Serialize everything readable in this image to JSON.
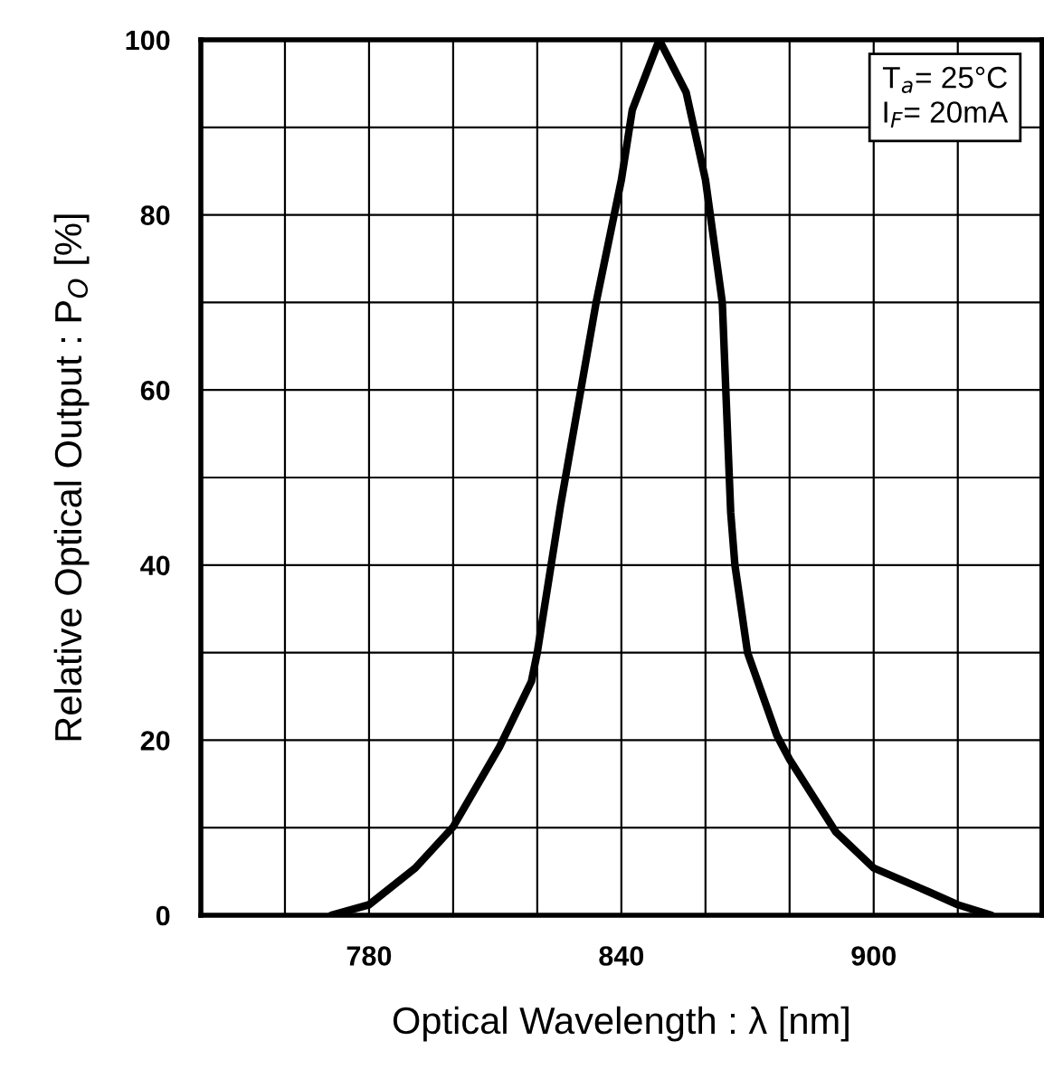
{
  "chart_data": {
    "type": "line",
    "xlabel": "Optical Wavelength : λ [nm]",
    "ylabel": "Relative Optical Output : P$_{O}$ [%]",
    "annotations": [
      "T$_{a}$= 25°C\nI$_{F}$= 20mA"
    ],
    "x": [
      771,
      780,
      791,
      800,
      811,
      818.6,
      820,
      825.5,
      834,
      840,
      842.6,
      849,
      855.4,
      860,
      864,
      866,
      867,
      870,
      877,
      880,
      891,
      900,
      913,
      920,
      928
    ],
    "series": [
      {
        "color": "#000000",
        "values": [
          0,
          1.2,
          5.4,
          10.1,
          19.2,
          26.7,
          30,
          46.7,
          70,
          84,
          92,
          100,
          94,
          84,
          70,
          46,
          40,
          30,
          20.5,
          17.8,
          9.5,
          5.4,
          2.7,
          1.2,
          0
        ]
      }
    ],
    "xlim": [
      740,
      940
    ],
    "xticks": [
      {
        "value": 740,
        "label": null
      },
      {
        "value": 760,
        "label": null
      },
      780,
      {
        "value": 800,
        "label": null
      },
      {
        "value": 820,
        "label": null
      },
      840,
      {
        "value": 860,
        "label": null
      },
      {
        "value": 880,
        "label": null
      },
      900,
      {
        "value": 920,
        "label": null
      },
      {
        "value": 940,
        "label": null
      }
    ],
    "ylim": [
      0,
      100
    ],
    "yticks": [
      0,
      {
        "value": 10,
        "label": null
      },
      20,
      {
        "value": 30,
        "label": null
      },
      40,
      {
        "value": 50,
        "label": null
      },
      60,
      {
        "value": 70,
        "label": null
      },
      80,
      {
        "value": 90,
        "label": null
      },
      100
    ],
    "grid": true,
    "marker": "none",
    "line_style": "solid"
  }
}
